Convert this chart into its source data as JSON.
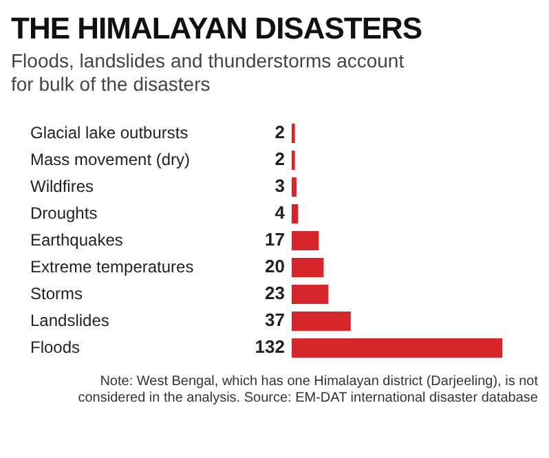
{
  "chart_data": {
    "type": "bar",
    "orientation": "horizontal",
    "title": "THE HIMALAYAN DISASTERS",
    "subtitle": "Floods, landslides and thunderstorms account for bulk of the disasters",
    "categories": [
      "Glacial lake outbursts",
      "Mass movement (dry)",
      "Wildfires",
      "Droughts",
      "Earthquakes",
      "Extreme temperatures",
      "Storms",
      "Landslides",
      "Floods"
    ],
    "values": [
      2,
      2,
      3,
      4,
      17,
      20,
      23,
      37,
      132
    ],
    "color": "#d7262b",
    "data_labels": true,
    "annotations": [
      "Note: West Bengal, which has one Himalayan district (Darjeeling), is not considered in the analysis. Source: EM-DAT international disaster database"
    ]
  }
}
